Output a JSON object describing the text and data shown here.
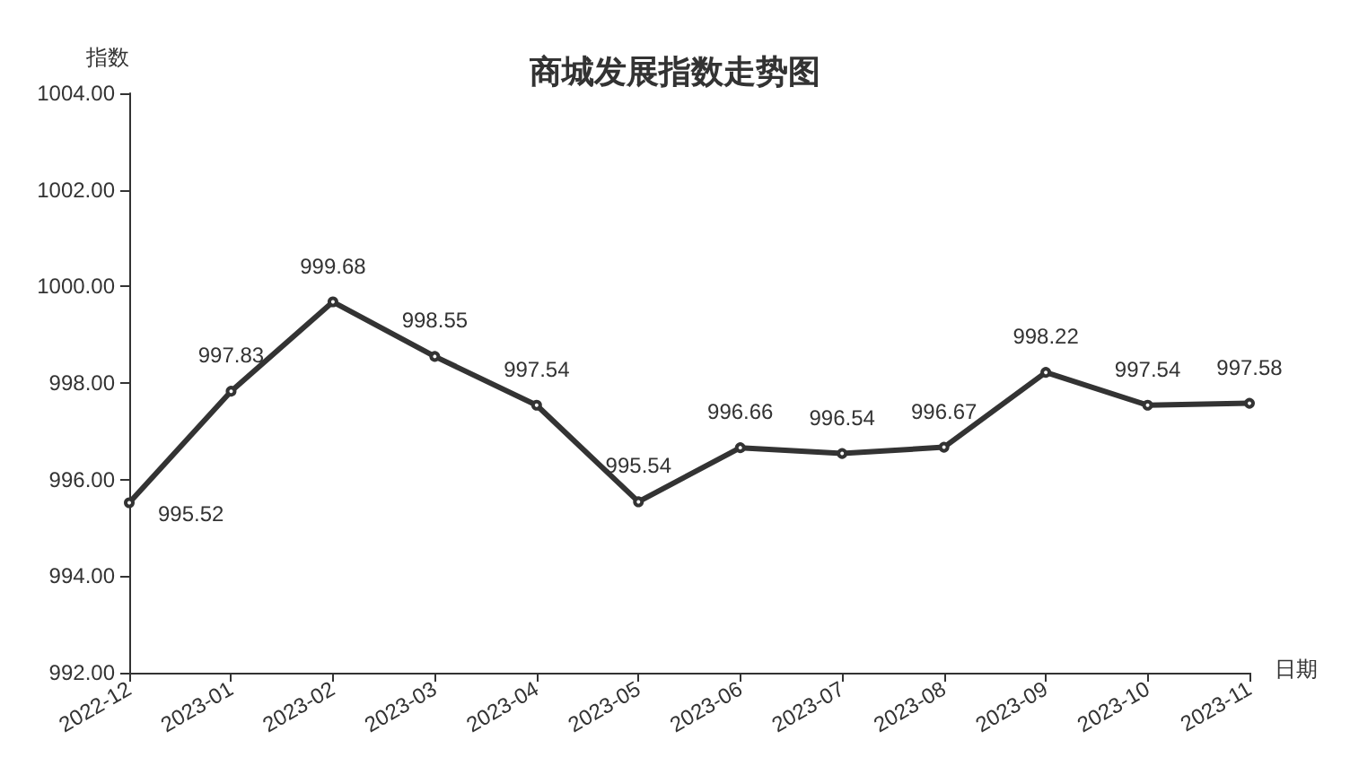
{
  "chart_data": {
    "type": "line",
    "title": "商城发展指数走势图",
    "xlabel": "日期",
    "ylabel": "指数",
    "categories": [
      "2022-12",
      "2023-01",
      "2023-02",
      "2023-03",
      "2023-04",
      "2023-05",
      "2023-06",
      "2023-07",
      "2023-08",
      "2023-09",
      "2023-10",
      "2023-11"
    ],
    "series": [
      {
        "color": "#333333",
        "values": [
          995.52,
          997.83,
          999.68,
          998.55,
          997.54,
          995.54,
          996.66,
          996.54,
          996.67,
          998.22,
          997.54,
          997.58
        ]
      }
    ],
    "ylim": [
      992,
      1004
    ],
    "yticks": [
      {
        "value": 992,
        "label": "992.00"
      },
      {
        "value": 994,
        "label": "994.00"
      },
      {
        "value": 996,
        "label": "996.00"
      },
      {
        "value": 998,
        "label": "998.00"
      },
      {
        "value": 1000,
        "label": "1000.00"
      },
      {
        "value": 1002,
        "label": "1002.00"
      },
      {
        "value": 1004,
        "label": "1004.00"
      }
    ],
    "data_labels": true,
    "grid": false,
    "marker": "circle",
    "line_style": "solid"
  }
}
